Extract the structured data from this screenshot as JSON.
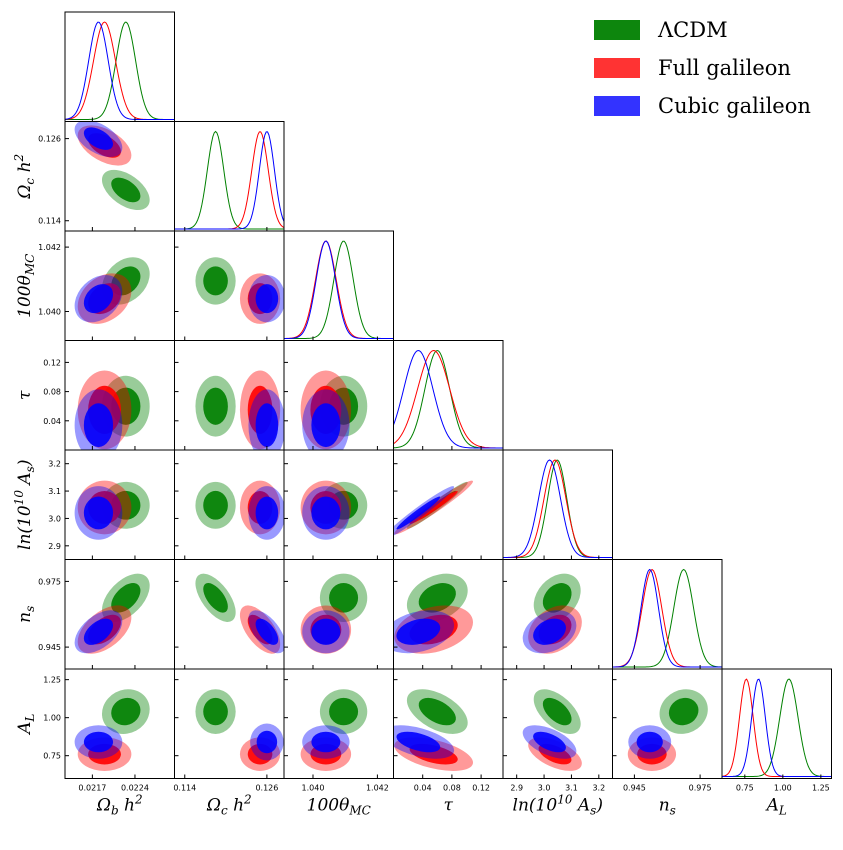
{
  "chart_data": {
    "type": "corner",
    "title": "",
    "parameters": [
      {
        "name": "omega_b",
        "label": "Ω_b h^2",
        "range": [
          0.02125,
          0.02305
        ],
        "ticks": [
          {
            "value": 0.0217,
            "label": "0.0217"
          },
          {
            "value": 0.0224,
            "label": "0.0224"
          }
        ]
      },
      {
        "name": "omega_c",
        "label": "Ω_c h^2",
        "range": [
          0.1125,
          0.1285
        ],
        "ticks": [
          {
            "value": 0.114,
            "label": "0.114"
          },
          {
            "value": 0.126,
            "label": "0.126"
          }
        ]
      },
      {
        "name": "theta",
        "label": "100θ_MC",
        "range": [
          1.0391,
          1.0425
        ],
        "ticks": [
          {
            "value": 1.04,
            "label": "1.040"
          },
          {
            "value": 1.042,
            "label": "1.042"
          }
        ]
      },
      {
        "name": "tau",
        "label": "τ",
        "range": [
          0.0,
          0.15
        ],
        "ticks": [
          {
            "value": 0.04,
            "label": "0.04"
          },
          {
            "value": 0.08,
            "label": "0.08"
          },
          {
            "value": 0.12,
            "label": "0.12"
          }
        ]
      },
      {
        "name": "lnAs",
        "label": "ln(10^10 A_s)",
        "range": [
          2.85,
          3.25
        ],
        "ticks": [
          {
            "value": 2.9,
            "label": "2.9"
          },
          {
            "value": 3.0,
            "label": "3.0"
          },
          {
            "value": 3.1,
            "label": "3.1"
          },
          {
            "value": 3.2,
            "label": "3.2"
          }
        ]
      },
      {
        "name": "ns",
        "label": "n_s",
        "range": [
          0.935,
          0.985
        ],
        "ticks": [
          {
            "value": 0.945,
            "label": "0.945"
          },
          {
            "value": 0.975,
            "label": "0.975"
          }
        ]
      },
      {
        "name": "AL",
        "label": "A_L",
        "range": [
          0.6,
          1.32
        ],
        "ticks": [
          {
            "value": 0.75,
            "label": "0.75"
          },
          {
            "value": 1.0,
            "label": "1.00"
          },
          {
            "value": 1.25,
            "label": "1.25"
          }
        ]
      }
    ],
    "series": [
      {
        "name": "ΛCDM",
        "color": "#008000",
        "mean": [
          0.02225,
          0.1185,
          1.04095,
          0.06,
          3.048,
          0.9675,
          1.04
        ],
        "sigma": [
          0.00016,
          0.0012,
          0.0003,
          0.017,
          0.035,
          0.0045,
          0.06
        ],
        "corr": {
          "0-1": -0.5,
          "0-2": 0.3,
          "0-5": 0.5,
          "1-5": -0.6,
          "3-4": 0.97,
          "3-5": 0.3,
          "4-5": 0.3,
          "0-6": 0.1,
          "3-6": -0.5,
          "4-6": -0.55,
          "5-6": 0.1
        }
      },
      {
        "name": "Full galileon",
        "color": "#ff0000",
        "mean": [
          0.0219,
          0.125,
          1.0404,
          0.055,
          3.04,
          0.953,
          0.76
        ],
        "sigma": [
          0.00018,
          0.0012,
          0.00032,
          0.022,
          0.04,
          0.0045,
          0.045
        ],
        "corr": {
          "0-1": -0.5,
          "0-2": 0.3,
          "0-5": 0.5,
          "1-5": -0.6,
          "3-4": 0.97,
          "3-5": 0.3,
          "4-5": 0.3,
          "3-6": -0.5,
          "4-6": -0.55
        }
      },
      {
        "name": "Cubic galileon",
        "color": "#0000ff",
        "mean": [
          0.0218,
          0.126,
          1.0404,
          0.034,
          3.02,
          0.952,
          0.84
        ],
        "sigma": [
          0.00016,
          0.0011,
          0.0003,
          0.02,
          0.04,
          0.004,
          0.045
        ],
        "corr": {
          "0-1": -0.5,
          "0-2": 0.3,
          "0-5": 0.5,
          "1-5": -0.6,
          "3-4": 0.97,
          "3-5": 0.3,
          "4-5": 0.3,
          "3-6": -0.5,
          "4-6": -0.55
        }
      }
    ],
    "legend_position": "top-right"
  }
}
